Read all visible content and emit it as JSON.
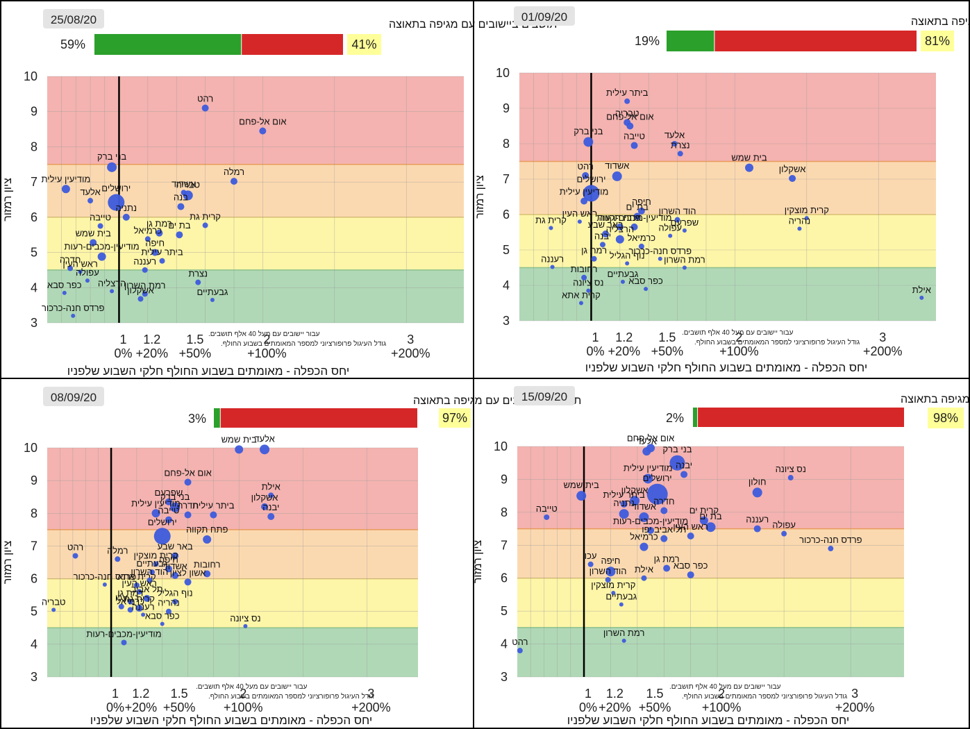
{
  "common": {
    "title": "תושבים ביישובים עם מגיפה בתאוצה",
    "ylabel": "ציון רמזור",
    "xlabel": "יחס הכפלה - מאומתים בשבוע החולף חלקי השבוע שלפניו",
    "note_line1": "עבור יישובים עם מעל 40 אלף תושבים.",
    "note_line2": "גודל העיגול פרופורציוני למספר המאומתים בשבוע החולף.",
    "y_ticks": [
      "3",
      "4",
      "5",
      "6",
      "7",
      "8",
      "9",
      "10"
    ],
    "x_ticks": [
      {
        "value": 1,
        "label": "1",
        "pct": "0%"
      },
      {
        "value": 1.2,
        "label": "1.2",
        "pct": "+20%"
      },
      {
        "value": 1.5,
        "label": "1.5",
        "pct": "+50%"
      },
      {
        "value": 2,
        "label": "2",
        "pct": "+100%"
      },
      {
        "value": 3,
        "label": "3",
        "pct": "+200%"
      }
    ],
    "zone_colors": {
      "red": "#f4b3b0",
      "orange": "#fbd9b0",
      "yellow": "#fdf5a8",
      "green": "#b0d8b6"
    },
    "bar_colors": {
      "green": "#2ba02b",
      "red": "#d62728",
      "highlight": "#ffff99",
      "point": "#3d5bdc"
    }
  },
  "chart_data": [
    {
      "type": "scatter",
      "date": "25/08/20",
      "green_pct": "59%",
      "red_pct": "41%",
      "green_share": 0.59,
      "xlim": [
        0.5,
        3.4
      ],
      "ylim": [
        3,
        10
      ],
      "zones": [
        [
          7.5,
          10,
          "red"
        ],
        [
          6,
          7.5,
          "orange"
        ],
        [
          4.5,
          6,
          "yellow"
        ],
        [
          3,
          4.5,
          "green"
        ]
      ],
      "points": [
        {
          "label": "רהט",
          "x": 1.6,
          "y": 9.1,
          "r": 5
        },
        {
          "label": "אום אל-פחם",
          "x": 2.0,
          "y": 8.45,
          "r": 5
        },
        {
          "label": "בני ברק",
          "x": 0.95,
          "y": 7.42,
          "r": 7
        },
        {
          "label": "רמלה",
          "x": 1.8,
          "y": 7.02,
          "r": 5
        },
        {
          "label": "מודיעין עילית",
          "x": 0.63,
          "y": 6.8,
          "r": 6
        },
        {
          "label": "אלעד",
          "x": 0.8,
          "y": 6.47,
          "r": 4
        },
        {
          "label": "ירושלים",
          "x": 0.98,
          "y": 6.42,
          "r": 12
        },
        {
          "label": "אשדוד",
          "x": 1.45,
          "y": 6.7,
          "r": 4
        },
        {
          "label": "טבריה",
          "x": 1.48,
          "y": 6.62,
          "r": 7
        },
        {
          "label": "בנה",
          "x": 1.43,
          "y": 6.3,
          "r": 5
        },
        {
          "label": "נתניה",
          "x": 1.05,
          "y": 6.0,
          "r": 5
        },
        {
          "label": "טייבה",
          "x": 0.87,
          "y": 5.75,
          "r": 4
        },
        {
          "label": "קרית גת",
          "x": 1.6,
          "y": 5.77,
          "r": 4
        },
        {
          "label": "רמת גן",
          "x": 1.28,
          "y": 5.55,
          "r": 5
        },
        {
          "label": "בית שמש",
          "x": 0.82,
          "y": 5.28,
          "r": 5
        },
        {
          "label": "בת ים",
          "x": 1.42,
          "y": 5.5,
          "r": 5
        },
        {
          "label": "כרמיאל",
          "x": 1.2,
          "y": 5.38,
          "r": 4
        },
        {
          "label": "מודיעין-מכבים-רעות",
          "x": 0.88,
          "y": 4.88,
          "r": 6
        },
        {
          "label": "חיפה",
          "x": 1.25,
          "y": 5.0,
          "r": 5
        },
        {
          "label": "ביתר עילית",
          "x": 1.3,
          "y": 4.76,
          "r": 4
        },
        {
          "label": "חדרה",
          "x": 0.66,
          "y": 4.55,
          "r": 4
        },
        {
          "label": "ראש העין",
          "x": 0.73,
          "y": 4.45,
          "r": 3
        },
        {
          "label": "עפולה",
          "x": 0.78,
          "y": 4.2,
          "r": 3
        },
        {
          "label": "רעננה",
          "x": 1.18,
          "y": 4.5,
          "r": 4
        },
        {
          "label": "נצרת",
          "x": 1.55,
          "y": 4.15,
          "r": 4
        },
        {
          "label": "הרצליה",
          "x": 0.95,
          "y": 3.9,
          "r": 3
        },
        {
          "label": "רמת השרון",
          "x": 1.18,
          "y": 3.82,
          "r": 4
        },
        {
          "label": "אשקלון",
          "x": 1.15,
          "y": 3.68,
          "r": 4
        },
        {
          "label": "כפר סבא",
          "x": 0.62,
          "y": 3.85,
          "r": 3
        },
        {
          "label": "גבעתיים",
          "x": 1.65,
          "y": 3.65,
          "r": 3
        },
        {
          "label": "פרדס חנה-כרכור",
          "x": 0.68,
          "y": 3.2,
          "r": 3
        }
      ]
    },
    {
      "type": "scatter",
      "date": "01/09/20",
      "green_pct": "19%",
      "red_pct": "81%",
      "green_share": 0.19,
      "xlim": [
        0.5,
        3.4
      ],
      "ylim": [
        3,
        10
      ],
      "zones": [
        [
          7.5,
          10,
          "red"
        ],
        [
          6,
          7.5,
          "orange"
        ],
        [
          4.5,
          6,
          "yellow"
        ],
        [
          3,
          4.5,
          "green"
        ]
      ],
      "points": [
        {
          "label": "ביתר עילית",
          "x": 1.25,
          "y": 9.2,
          "r": 4
        },
        {
          "label": "טבריה",
          "x": 1.25,
          "y": 8.6,
          "r": 5
        },
        {
          "label": "אום אל-פחם",
          "x": 1.27,
          "y": 8.5,
          "r": 5
        },
        {
          "label": "בני ברק",
          "x": 0.98,
          "y": 8.05,
          "r": 7
        },
        {
          "label": "טייבה",
          "x": 1.3,
          "y": 7.95,
          "r": 5
        },
        {
          "label": "אלעד",
          "x": 1.58,
          "y": 8.0,
          "r": 4
        },
        {
          "label": "נצרת",
          "x": 1.62,
          "y": 7.72,
          "r": 4
        },
        {
          "label": "בית שמש",
          "x": 2.1,
          "y": 7.32,
          "r": 6
        },
        {
          "label": "אשקלון",
          "x": 2.4,
          "y": 7.02,
          "r": 5
        },
        {
          "label": "רהט",
          "x": 0.96,
          "y": 7.1,
          "r": 5
        },
        {
          "label": "אשדוד",
          "x": 1.18,
          "y": 7.08,
          "r": 7
        },
        {
          "label": "ירושלים",
          "x": 1.0,
          "y": 6.6,
          "r": 12
        },
        {
          "label": "מודיעין עילית",
          "x": 0.95,
          "y": 6.38,
          "r": 5
        },
        {
          "label": "חיפה",
          "x": 1.35,
          "y": 6.1,
          "r": 5
        },
        {
          "label": "בת ים",
          "x": 1.32,
          "y": 5.95,
          "r": 5
        },
        {
          "label": "הוד השרון",
          "x": 1.6,
          "y": 5.85,
          "r": 4
        },
        {
          "label": "קרית מוצקין",
          "x": 2.5,
          "y": 5.9,
          "r": 3
        },
        {
          "label": "נהריה",
          "x": 2.45,
          "y": 5.6,
          "r": 3
        },
        {
          "label": "קרית גת",
          "x": 0.72,
          "y": 5.62,
          "r": 3
        },
        {
          "label": "פתח תקווה",
          "x": 1.2,
          "y": 5.65,
          "r": 5
        },
        {
          "label": "ראש העין",
          "x": 0.92,
          "y": 5.8,
          "r": 3
        },
        {
          "label": "שפרעם",
          "x": 1.65,
          "y": 5.55,
          "r": 3
        },
        {
          "label": "עפולה",
          "x": 1.55,
          "y": 5.4,
          "r": 3
        },
        {
          "label": "מודיעין-מכבים-רעות",
          "x": 1.3,
          "y": 5.65,
          "r": 5
        },
        {
          "label": "באר שבע",
          "x": 1.1,
          "y": 5.45,
          "r": 5
        },
        {
          "label": "הרצליה",
          "x": 1.2,
          "y": 5.3,
          "r": 6
        },
        {
          "label": "כרמיאל",
          "x": 1.35,
          "y": 5.1,
          "r": 4
        },
        {
          "label": "יבנה",
          "x": 1.08,
          "y": 5.15,
          "r": 4
        },
        {
          "label": "רעננה",
          "x": 0.73,
          "y": 4.52,
          "r": 3
        },
        {
          "label": "רמת גן",
          "x": 1.02,
          "y": 4.75,
          "r": 4
        },
        {
          "label": "נוף הגליל",
          "x": 1.25,
          "y": 4.62,
          "r": 3
        },
        {
          "label": "פרדס חנה-כרכור",
          "x": 1.48,
          "y": 4.75,
          "r": 3
        },
        {
          "label": "רמת השרון",
          "x": 1.65,
          "y": 4.5,
          "r": 3
        },
        {
          "label": "רחובות",
          "x": 0.95,
          "y": 4.22,
          "r": 4
        },
        {
          "label": "גבעתיים",
          "x": 1.22,
          "y": 4.1,
          "r": 3
        },
        {
          "label": "כפר סבא",
          "x": 1.38,
          "y": 3.9,
          "r": 3
        },
        {
          "label": "נס ציונה",
          "x": 0.98,
          "y": 3.85,
          "r": 3
        },
        {
          "label": "קרית אתא",
          "x": 0.93,
          "y": 3.5,
          "r": 3
        },
        {
          "label": "אילת",
          "x": 3.3,
          "y": 3.65,
          "r": 3
        }
      ]
    },
    {
      "type": "scatter",
      "date": "08/09/20",
      "green_pct": "3%",
      "red_pct": "97%",
      "green_share": 0.03,
      "xlim": [
        0.5,
        3.4
      ],
      "ylim": [
        3,
        10
      ],
      "zones": [
        [
          7.5,
          10,
          "red"
        ],
        [
          6,
          7.5,
          "orange"
        ],
        [
          4.5,
          6,
          "yellow"
        ],
        [
          3,
          4.5,
          "green"
        ]
      ],
      "points": [
        {
          "label": "בית שמש",
          "x": 2.0,
          "y": 9.95,
          "r": 6
        },
        {
          "label": "אלעד",
          "x": 2.2,
          "y": 9.95,
          "r": 7
        },
        {
          "label": "אום אל-פחם",
          "x": 1.6,
          "y": 8.95,
          "r": 5
        },
        {
          "label": "אילת",
          "x": 2.25,
          "y": 8.55,
          "r": 4
        },
        {
          "label": "שפרעם",
          "x": 1.45,
          "y": 8.35,
          "r": 5
        },
        {
          "label": "אשקלון",
          "x": 2.2,
          "y": 8.2,
          "r": 5
        },
        {
          "label": "בני ברק",
          "x": 1.5,
          "y": 8.18,
          "r": 7
        },
        {
          "label": "מודיעין עילית",
          "x": 1.35,
          "y": 8.0,
          "r": 6
        },
        {
          "label": "יבנה",
          "x": 2.25,
          "y": 7.9,
          "r": 5
        },
        {
          "label": "חדרה",
          "x": 1.6,
          "y": 7.95,
          "r": 5
        },
        {
          "label": "ביתר עילית",
          "x": 1.8,
          "y": 7.95,
          "r": 5
        },
        {
          "label": "טייבה",
          "x": 1.45,
          "y": 7.8,
          "r": 5
        },
        {
          "label": "ירושלים",
          "x": 1.4,
          "y": 7.3,
          "r": 12
        },
        {
          "label": "פתח תקווה",
          "x": 1.75,
          "y": 7.2,
          "r": 6
        },
        {
          "label": "רהט",
          "x": 0.72,
          "y": 6.7,
          "r": 4
        },
        {
          "label": "רמלה",
          "x": 1.05,
          "y": 6.6,
          "r": 4
        },
        {
          "label": "באר שבע",
          "x": 1.5,
          "y": 6.7,
          "r": 5
        },
        {
          "label": "קרית מוצקין",
          "x": 1.35,
          "y": 6.45,
          "r": 4
        },
        {
          "label": "רחובות",
          "x": 1.75,
          "y": 6.15,
          "r": 5
        },
        {
          "label": "חיפה",
          "x": 1.45,
          "y": 6.3,
          "r": 5
        },
        {
          "label": "גבעתיים",
          "x": 1.32,
          "y": 6.2,
          "r": 4
        },
        {
          "label": "אשדוד",
          "x": 1.5,
          "y": 6.1,
          "r": 5
        },
        {
          "label": "פרדס חנה-כרכור",
          "x": 0.95,
          "y": 5.82,
          "r": 3
        },
        {
          "label": "קרית אתא",
          "x": 1.2,
          "y": 5.8,
          "r": 4
        },
        {
          "label": "הוד השרון",
          "x": 1.3,
          "y": 5.95,
          "r": 4
        },
        {
          "label": "אשון לציון",
          "x": 1.6,
          "y": 5.9,
          "r": 5
        },
        {
          "label": "ראש העין",
          "x": 1.22,
          "y": 5.6,
          "r": 4
        },
        {
          "label": "רמת גן",
          "x": 1.15,
          "y": 5.3,
          "r": 4
        },
        {
          "label": "תל אביב",
          "x": 1.28,
          "y": 5.4,
          "r": 5
        },
        {
          "label": "נוף הגליל",
          "x": 1.5,
          "y": 5.3,
          "r": 4
        },
        {
          "label": "עכו",
          "x": 1.08,
          "y": 5.15,
          "r": 4
        },
        {
          "label": "כרמיאל",
          "x": 1.15,
          "y": 5.05,
          "r": 4
        },
        {
          "label": "קרית גת",
          "x": 1.22,
          "y": 5.1,
          "r": 5
        },
        {
          "label": "טבריה",
          "x": 0.55,
          "y": 5.05,
          "r": 3
        },
        {
          "label": "רעננה",
          "x": 1.25,
          "y": 4.9,
          "r": 3
        },
        {
          "label": "נהריה",
          "x": 1.45,
          "y": 5.0,
          "r": 4
        },
        {
          "label": "נס ציונה",
          "x": 2.05,
          "y": 4.55,
          "r": 3
        },
        {
          "label": "כפר סבא",
          "x": 1.4,
          "y": 4.62,
          "r": 3
        },
        {
          "label": "מודיעין-מכבים-רעות",
          "x": 1.1,
          "y": 4.05,
          "r": 4
        }
      ]
    },
    {
      "type": "scatter",
      "date": "15/09/20",
      "green_pct": "2%",
      "red_pct": "98%",
      "green_share": 0.02,
      "xlim": [
        0.5,
        3.4
      ],
      "ylim": [
        3,
        10
      ],
      "zones": [
        [
          7.5,
          10,
          "red"
        ],
        [
          6,
          7.5,
          "orange"
        ],
        [
          4.5,
          6,
          "yellow"
        ],
        [
          3,
          4.5,
          "green"
        ]
      ],
      "points": [
        {
          "label": "אום אל-פחם",
          "x": 1.5,
          "y": 9.95,
          "r": 6
        },
        {
          "label": "אלעד",
          "x": 1.47,
          "y": 9.85,
          "r": 6
        },
        {
          "label": "בני ברק",
          "x": 1.7,
          "y": 9.5,
          "r": 11
        },
        {
          "label": "יבנה",
          "x": 1.75,
          "y": 9.15,
          "r": 5
        },
        {
          "label": "נס ציונה",
          "x": 2.55,
          "y": 9.05,
          "r": 4
        },
        {
          "label": "מודיעין עילית",
          "x": 1.48,
          "y": 9.02,
          "r": 7
        },
        {
          "label": "ירושלים",
          "x": 1.55,
          "y": 8.55,
          "r": 15
        },
        {
          "label": "חולון",
          "x": 2.3,
          "y": 8.6,
          "r": 7
        },
        {
          "label": "בית שמש",
          "x": 0.98,
          "y": 8.5,
          "r": 7
        },
        {
          "label": "אשקלון",
          "x": 1.38,
          "y": 8.35,
          "r": 7
        },
        {
          "label": "ביתר עילית",
          "x": 1.3,
          "y": 8.25,
          "r": 5
        },
        {
          "label": "חדרה",
          "x": 1.6,
          "y": 8.05,
          "r": 5
        },
        {
          "label": "טייבה",
          "x": 0.72,
          "y": 7.85,
          "r": 4
        },
        {
          "label": "נתניה",
          "x": 1.3,
          "y": 7.95,
          "r": 7
        },
        {
          "label": "אשדוד",
          "x": 1.45,
          "y": 7.85,
          "r": 7
        },
        {
          "label": "קרית ים",
          "x": 1.9,
          "y": 7.75,
          "r": 6
        },
        {
          "label": "בת ים",
          "x": 1.95,
          "y": 7.55,
          "r": 7
        },
        {
          "label": "רעננה",
          "x": 2.3,
          "y": 7.5,
          "r": 5
        },
        {
          "label": "מודיעין-מכבים-רעות",
          "x": 1.5,
          "y": 7.45,
          "r": 5
        },
        {
          "label": "ראש העין",
          "x": 1.8,
          "y": 7.28,
          "r": 5
        },
        {
          "label": "עפולה",
          "x": 2.5,
          "y": 7.35,
          "r": 4
        },
        {
          "label": "תל אביב יפו",
          "x": 1.6,
          "y": 7.2,
          "r": 5
        },
        {
          "label": "כרמיאל",
          "x": 1.45,
          "y": 6.95,
          "r": 6
        },
        {
          "label": "פרדס חנה-כרכור",
          "x": 2.85,
          "y": 6.9,
          "r": 4
        },
        {
          "label": "עכו",
          "x": 1.05,
          "y": 6.42,
          "r": 4
        },
        {
          "label": "חיפה",
          "x": 1.2,
          "y": 6.2,
          "r": 7
        },
        {
          "label": "אילת",
          "x": 1.45,
          "y": 6.0,
          "r": 4
        },
        {
          "label": "רמת גן",
          "x": 1.62,
          "y": 6.3,
          "r": 5
        },
        {
          "label": "כפר סבא",
          "x": 1.8,
          "y": 6.1,
          "r": 5
        },
        {
          "label": "הוד השרון",
          "x": 1.18,
          "y": 5.95,
          "r": 4
        },
        {
          "label": "קרית מוצקין",
          "x": 1.22,
          "y": 5.55,
          "r": 3
        },
        {
          "label": "גבעתיים",
          "x": 1.28,
          "y": 5.2,
          "r": 3
        },
        {
          "label": "רמת השרון",
          "x": 1.3,
          "y": 4.1,
          "r": 3
        },
        {
          "label": "רהט",
          "x": 0.52,
          "y": 3.8,
          "r": 4
        }
      ]
    }
  ]
}
